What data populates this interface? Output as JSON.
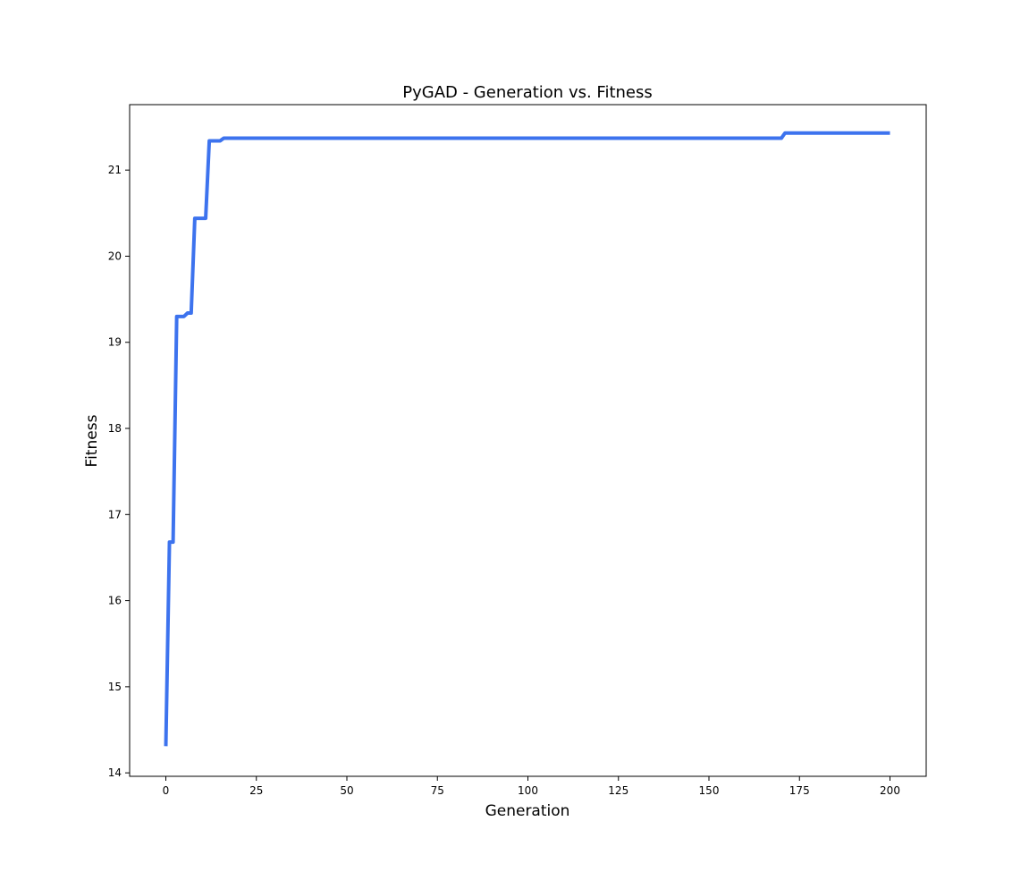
{
  "chart_data": {
    "type": "line",
    "title": "PyGAD - Generation vs. Fitness",
    "xlabel": "Generation",
    "ylabel": "Fitness",
    "xlim": [
      -10,
      210
    ],
    "ylim": [
      13.96,
      21.76
    ],
    "xticks": [
      0,
      25,
      50,
      75,
      100,
      125,
      150,
      175,
      200
    ],
    "yticks": [
      14,
      15,
      16,
      17,
      18,
      19,
      20,
      21
    ],
    "grid": false,
    "series": [
      {
        "color": "#3d73ee",
        "x": [
          0,
          1,
          2,
          3,
          4,
          5,
          6,
          7,
          8,
          9,
          10,
          11,
          12,
          13,
          14,
          15,
          16,
          17,
          50,
          100,
          150,
          170,
          171,
          172,
          200
        ],
        "y": [
          14.31,
          16.68,
          16.68,
          19.3,
          19.3,
          19.3,
          19.34,
          19.34,
          20.44,
          20.44,
          20.44,
          20.44,
          21.34,
          21.34,
          21.34,
          21.34,
          21.37,
          21.37,
          21.37,
          21.37,
          21.37,
          21.37,
          21.43,
          21.43,
          21.43
        ]
      }
    ]
  }
}
